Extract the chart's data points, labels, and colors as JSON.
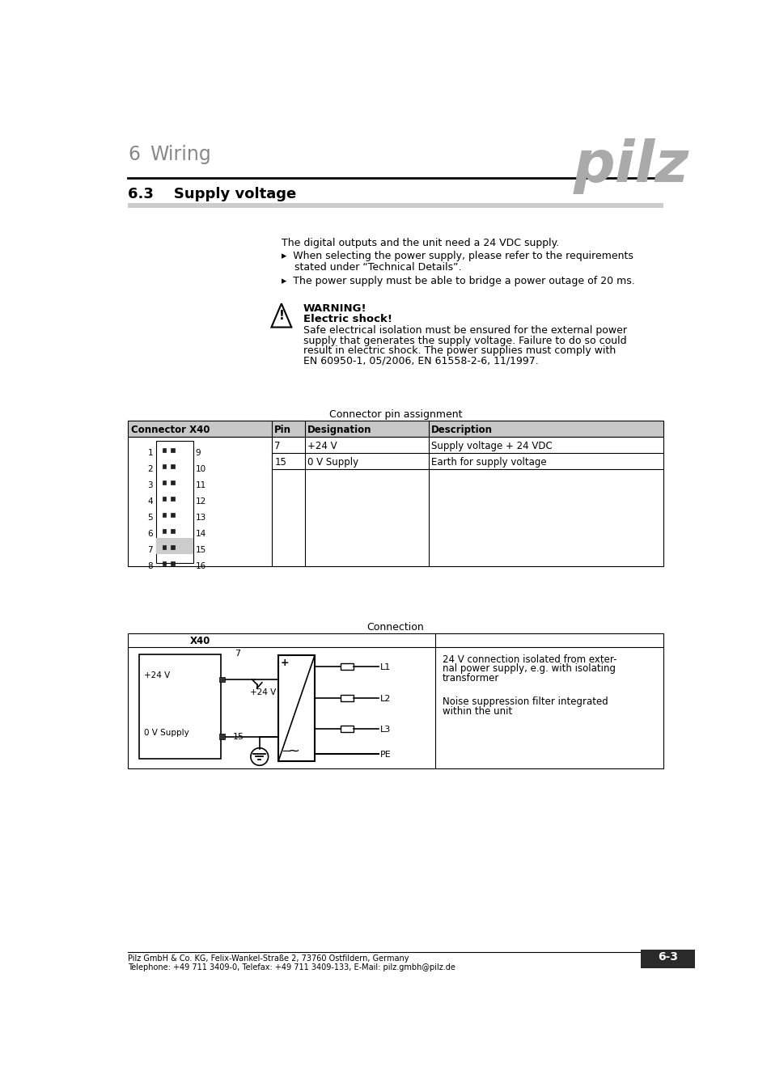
{
  "page_title_num": "6",
  "page_title_text": "Wiring",
  "section_title": "6.3    Supply voltage",
  "logo_text": "pilz",
  "body_text_line1": "The digital outputs and the unit need a 24 VDC supply.",
  "bullet1a": "▸  When selecting the power supply, please refer to the requirements",
  "bullet1b": "    stated under “Technical Details”.",
  "bullet2": "▸  The power supply must be able to bridge a power outage of 20 ms.",
  "warning_title": "WARNING!",
  "warning_subtitle": "Electric shock!",
  "warning_body_lines": [
    "Safe electrical isolation must be ensured for the external power",
    "supply that generates the supply voltage. Failure to do so could",
    "result in electric shock. The power supplies must comply with",
    "EN 60950-1, 05/2006, EN 61558-2-6, 11/1997."
  ],
  "connector_label": "Connector pin assignment",
  "connection_label": "Connection",
  "table_header": [
    "Connector X40",
    "Pin",
    "Designation",
    "Description"
  ],
  "table_rows": [
    [
      "7",
      "+24 V",
      "Supply voltage + 24 VDC"
    ],
    [
      "15",
      "0 V Supply",
      "Earth for supply voltage"
    ]
  ],
  "pin_numbers_left": [
    "1",
    "2",
    "3",
    "4",
    "5",
    "6",
    "7",
    "8"
  ],
  "pin_numbers_right": [
    "9",
    "10",
    "11",
    "12",
    "13",
    "14",
    "15",
    "16"
  ],
  "conn_diagram_text1_lines": [
    "24 V connection isolated from exter-",
    "nal power supply, e.g. with isolating",
    "transformer"
  ],
  "conn_diagram_text2_lines": [
    "Noise suppression filter integrated",
    "within the unit"
  ],
  "footer_line1": "Pilz GmbH & Co. KG, Felix-Wankel-Straße 2, 73760 Ostfildern, Germany",
  "footer_line2": "Telephone: +49 711 3409-0, Telefax: +49 711 3409-133, E-Mail: pilz.gmbh@pilz.de",
  "page_num": "6-3",
  "bg_color": "#ffffff",
  "header_gray": "#c8c8c8",
  "pin_gray": "#cccccc",
  "dark_gray": "#333333",
  "section_bar_color": "#cccccc",
  "footer_box_color": "#2a2a2a"
}
